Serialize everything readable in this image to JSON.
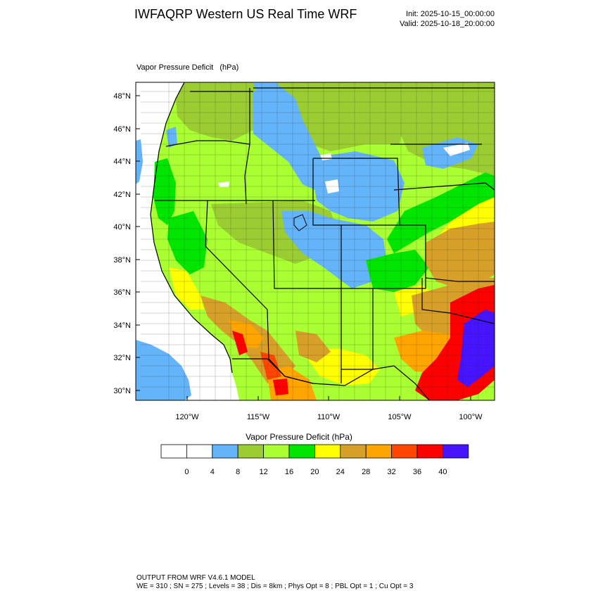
{
  "header": {
    "title": "IWFAQRP Western US Real Time WRF",
    "init": "Init: 2025-10-15_00:00:00",
    "valid": "Valid: 2025-10-18_20:00:00"
  },
  "map": {
    "field_title": "Vapor Pressure Deficit   (hPa)",
    "lat_labels": [
      "48°N",
      "46°N",
      "44°N",
      "42°N",
      "40°N",
      "38°N",
      "36°N",
      "34°N",
      "32°N",
      "30°N"
    ],
    "lon_labels": [
      "120°W",
      "115°W",
      "110°W",
      "105°W",
      "100°W"
    ]
  },
  "colorbar": {
    "title": "Vapor Pressure Deficit  (hPa)",
    "labels": [
      "0",
      "4",
      "8",
      "12",
      "16",
      "20",
      "24",
      "28",
      "32",
      "36",
      "40"
    ],
    "colors": [
      "#ffffff",
      "#ffffff",
      "#64b4fa",
      "#9bcd32",
      "#aaff32",
      "#00e600",
      "#ffff00",
      "#d7a028",
      "#ffa500",
      "#ff4500",
      "#ff0000",
      "#4614ff"
    ]
  },
  "footer": {
    "line1": "OUTPUT FROM WRF V4.6.1 MODEL",
    "line2": "WE = 310 ; SN = 275 ; Levels = 38 ; Dis = 8km ; Phys Opt = 8 ; PBL Opt = 1 ; Cu Opt = 3"
  }
}
